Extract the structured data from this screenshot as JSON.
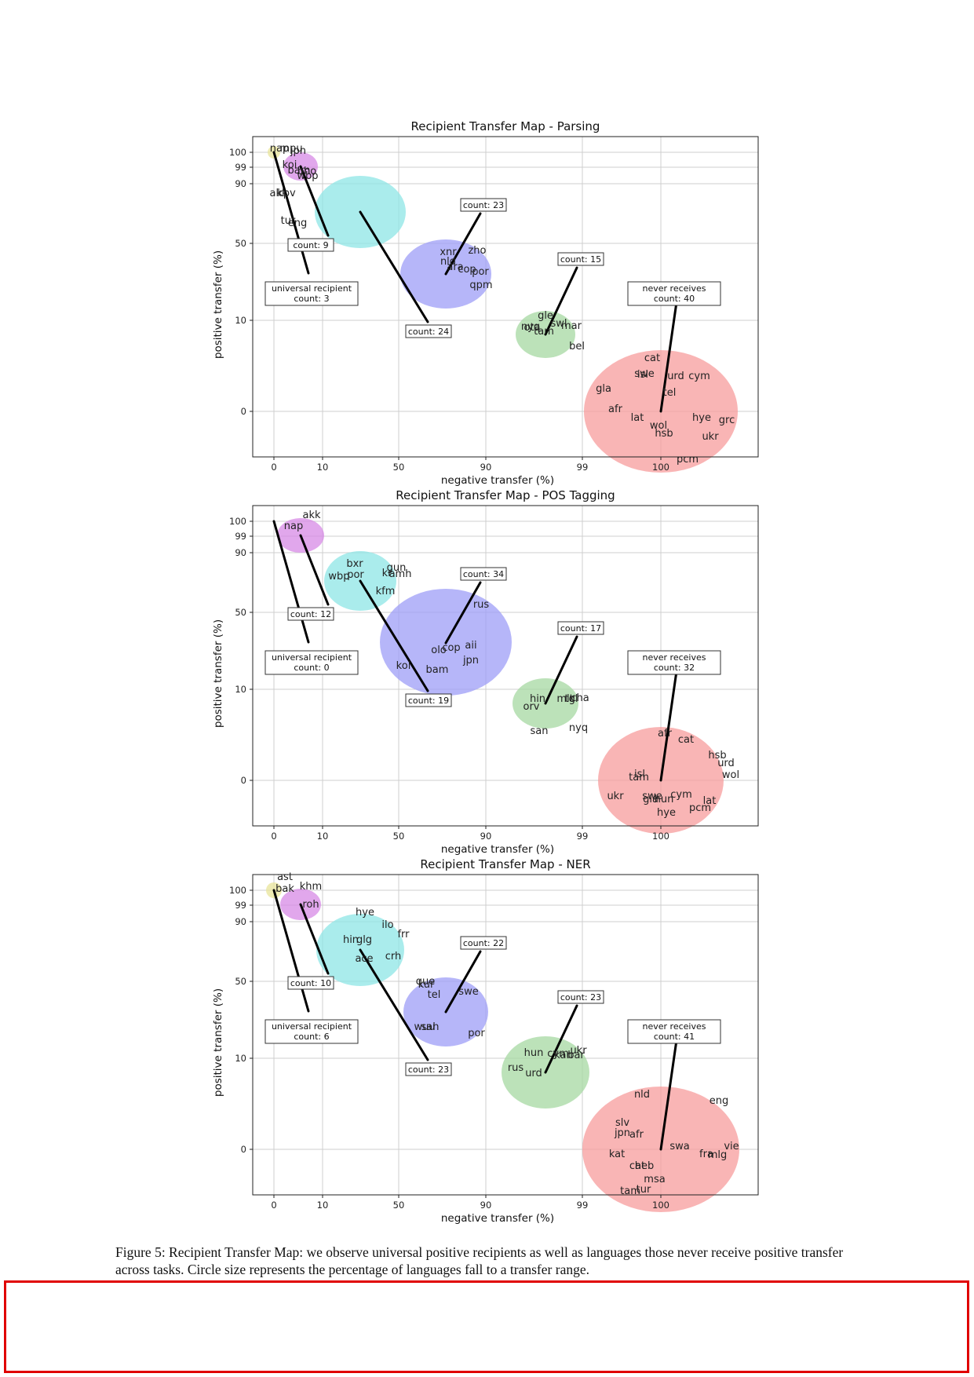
{
  "caption": "Figure 5: Recipient Transfer Map: we observe universal positive recipients as well as languages those never receive positive transfer across tasks. Circle size represents the percentage of languages fall to a transfer range.",
  "chart_data": [
    {
      "type": "scatter",
      "title": "Recipient Transfer Map - Parsing",
      "xlabel": "negative transfer (%)",
      "ylabel": "positive transfer (%)",
      "x_ticks": [
        "0",
        "10",
        "50",
        "90",
        "99",
        "100"
      ],
      "y_ticks": [
        "100",
        "99",
        "90",
        "50",
        "10",
        "0"
      ],
      "grid": true,
      "groups": [
        {
          "color": "#e8e49a",
          "x": "0",
          "y": "100",
          "count_label": "universal recipient\ncount: 3",
          "languages": [
            {
              "name": "nap"
            },
            {
              "name": "mpu"
            }
          ]
        },
        {
          "color": "#d78ae6",
          "x": "10",
          "y": "99",
          "count_label": "count: 9",
          "languages": [
            {
              "name": "jpn"
            },
            {
              "name": "koi"
            }
          ]
        },
        {
          "color": "#8ee5e5",
          "x": "50",
          "y": "90",
          "count_label": "count: 24",
          "languages": [
            {
              "name": "bam"
            },
            {
              "name": "bho"
            },
            {
              "name": "wbp"
            },
            {
              "name": "akk"
            },
            {
              "name": "kpv"
            },
            {
              "name": "tur"
            },
            {
              "name": "eng"
            }
          ]
        },
        {
          "color": "#9e9ef7",
          "x": "90",
          "y": "50",
          "count_label": "count: 23",
          "languages": [
            {
              "name": "xnr"
            },
            {
              "name": "zho"
            },
            {
              "name": "nld"
            },
            {
              "name": "ara"
            },
            {
              "name": "cop"
            },
            {
              "name": "por"
            },
            {
              "name": "qpm"
            }
          ]
        },
        {
          "color": "#a5d8a2",
          "x": "99",
          "y": "10",
          "count_label": "count: 15",
          "languages": [
            {
              "name": "gle"
            },
            {
              "name": "swl"
            },
            {
              "name": "nyq"
            },
            {
              "name": "mar"
            },
            {
              "name": "ota"
            },
            {
              "name": "tam"
            },
            {
              "name": "bel"
            }
          ]
        },
        {
          "color": "#f79c9c",
          "x": "100",
          "y": "0",
          "count_label": "never receives\ncount: 40",
          "languages": [
            {
              "name": "cat"
            },
            {
              "name": "swe"
            },
            {
              "name": "isl"
            },
            {
              "name": "urd"
            },
            {
              "name": "cym"
            },
            {
              "name": "gla"
            },
            {
              "name": "tel"
            },
            {
              "name": "afr"
            },
            {
              "name": "lat"
            },
            {
              "name": "hye"
            },
            {
              "name": "grc"
            },
            {
              "name": "wol"
            },
            {
              "name": "hsb"
            },
            {
              "name": "ukr"
            },
            {
              "name": "pcm"
            }
          ]
        }
      ]
    },
    {
      "type": "scatter",
      "title": "Recipient Transfer Map - POS Tagging",
      "xlabel": "negative transfer (%)",
      "ylabel": "positive transfer (%)",
      "x_ticks": [
        "0",
        "10",
        "50",
        "90",
        "99",
        "100"
      ],
      "y_ticks": [
        "100",
        "99",
        "90",
        "50",
        "10",
        "0"
      ],
      "grid": true,
      "groups": [
        {
          "color": "#e8e49a",
          "x": "0",
          "y": "100",
          "count_label": "universal recipient\ncount: 0",
          "languages": []
        },
        {
          "color": "#d78ae6",
          "x": "10",
          "y": "99",
          "count_label": "count: 12",
          "languages": [
            {
              "name": "akk"
            },
            {
              "name": "nap"
            }
          ]
        },
        {
          "color": "#8ee5e5",
          "x": "50",
          "y": "90",
          "count_label": "count: 19",
          "languages": [
            {
              "name": "bxr"
            },
            {
              "name": "gun"
            },
            {
              "name": "wbp"
            },
            {
              "name": "por"
            },
            {
              "name": "kr"
            },
            {
              "name": "amh"
            },
            {
              "name": "kfm"
            }
          ]
        },
        {
          "color": "#9e9ef7",
          "x": "90",
          "y": "50",
          "count_label": "count: 34",
          "languages": [
            {
              "name": "rus"
            },
            {
              "name": "olo"
            },
            {
              "name": "cop"
            },
            {
              "name": "aii"
            },
            {
              "name": "jpn"
            },
            {
              "name": "koi"
            },
            {
              "name": "bam"
            }
          ]
        },
        {
          "color": "#a5d8a2",
          "x": "99",
          "y": "10",
          "count_label": "count: 17",
          "languages": [
            {
              "name": "hin"
            },
            {
              "name": "mlt"
            },
            {
              "name": "tgl"
            },
            {
              "name": "cha"
            },
            {
              "name": "orv"
            },
            {
              "name": "san"
            },
            {
              "name": "nyq"
            }
          ]
        },
        {
          "color": "#f79c9c",
          "x": "100",
          "y": "0",
          "count_label": "never receives\ncount: 32",
          "languages": [
            {
              "name": "afr"
            },
            {
              "name": "cat"
            },
            {
              "name": "hsb"
            },
            {
              "name": "urd"
            },
            {
              "name": "isl"
            },
            {
              "name": "tam"
            },
            {
              "name": "wol"
            },
            {
              "name": "ukr"
            },
            {
              "name": "swe"
            },
            {
              "name": "gla"
            },
            {
              "name": "hun"
            },
            {
              "name": "cym"
            },
            {
              "name": "lat"
            },
            {
              "name": "pcm"
            },
            {
              "name": "hye"
            }
          ]
        }
      ]
    },
    {
      "type": "scatter",
      "title": "Recipient Transfer Map - NER",
      "xlabel": "negative transfer (%)",
      "ylabel": "positive transfer (%)",
      "x_ticks": [
        "0",
        "10",
        "50",
        "90",
        "99",
        "100"
      ],
      "y_ticks": [
        "100",
        "99",
        "90",
        "50",
        "10",
        "0"
      ],
      "grid": true,
      "groups": [
        {
          "color": "#e8e49a",
          "x": "0",
          "y": "100",
          "count_label": "universal recipient\ncount: 6",
          "languages": [
            {
              "name": "ast"
            },
            {
              "name": "bak"
            }
          ]
        },
        {
          "color": "#d78ae6",
          "x": "10",
          "y": "99",
          "count_label": "count: 10",
          "languages": [
            {
              "name": "khm"
            },
            {
              "name": "roh"
            }
          ]
        },
        {
          "color": "#8ee5e5",
          "x": "50",
          "y": "90",
          "count_label": "count: 23",
          "languages": [
            {
              "name": "hye"
            },
            {
              "name": "ilo"
            },
            {
              "name": "frr"
            },
            {
              "name": "hin"
            },
            {
              "name": "glg"
            },
            {
              "name": "ace"
            },
            {
              "name": "crh"
            }
          ]
        },
        {
          "color": "#9e9ef7",
          "x": "90",
          "y": "50",
          "count_label": "count: 22",
          "languages": [
            {
              "name": "que"
            },
            {
              "name": "kur"
            },
            {
              "name": "tel"
            },
            {
              "name": "swe"
            },
            {
              "name": "wuu"
            },
            {
              "name": "sah"
            },
            {
              "name": "por"
            }
          ]
        },
        {
          "color": "#a5d8a2",
          "x": "99",
          "y": "10",
          "count_label": "count: 23",
          "languages": [
            {
              "name": "rus"
            },
            {
              "name": "hun"
            },
            {
              "name": "cym"
            },
            {
              "name": "ukr"
            },
            {
              "name": "kan"
            },
            {
              "name": "bar"
            },
            {
              "name": "urd"
            }
          ]
        },
        {
          "color": "#f79c9c",
          "x": "100",
          "y": "0",
          "count_label": "never receives\ncount: 41",
          "languages": [
            {
              "name": "nld"
            },
            {
              "name": "eng"
            },
            {
              "name": "slv"
            },
            {
              "name": "jpn"
            },
            {
              "name": "afr"
            },
            {
              "name": "swa"
            },
            {
              "name": "fra"
            },
            {
              "name": "vie"
            },
            {
              "name": "mlg"
            },
            {
              "name": "kat"
            },
            {
              "name": "cat"
            },
            {
              "name": "heb"
            },
            {
              "name": "msa"
            },
            {
              "name": "tam"
            },
            {
              "name": "tur"
            }
          ]
        }
      ]
    }
  ]
}
